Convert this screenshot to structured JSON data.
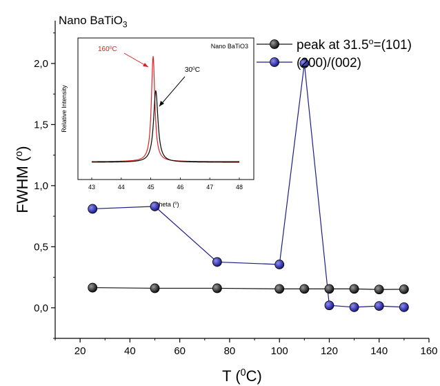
{
  "chart_data": [
    {
      "type": "line",
      "title": "Nano BaTiO3",
      "title_parts": {
        "base": "Nano BaTiO",
        "sub": "3"
      },
      "xlabel": "T (0C)",
      "xlabel_parts": {
        "pre": "T (",
        "sup": "0",
        "post": "C)"
      },
      "ylabel": "FWHM (o)",
      "ylabel_parts": {
        "pre": "FWHM (",
        "sup": "o",
        "post": ")"
      },
      "xlim": [
        10,
        160
      ],
      "ylim": [
        -0.25,
        2.35
      ],
      "x_ticks": [
        "20",
        "40",
        "60",
        "80",
        "100",
        "120",
        "140",
        "160"
      ],
      "x_tick_values": [
        20,
        40,
        60,
        80,
        100,
        120,
        140,
        160
      ],
      "y_ticks": [
        "0,0",
        "0,5",
        "1,0",
        "1,5",
        "2,0"
      ],
      "y_tick_values": [
        0,
        0.5,
        1.0,
        1.5,
        2.0
      ],
      "legend_position": "top-right",
      "series": [
        {
          "name": "peak at 31.5o=(101)",
          "name_parts": {
            "pre": "peak at 31.5",
            "sup": "o",
            "post": "=(101)"
          },
          "color": "#111111",
          "x": [
            25,
            50,
            75,
            100,
            110,
            120,
            130,
            140,
            150
          ],
          "y": [
            0.165,
            0.16,
            0.16,
            0.155,
            0.155,
            0.155,
            0.155,
            0.15,
            0.152
          ]
        },
        {
          "name": "(200)/(002)",
          "color": "#1a1a8c",
          "x": [
            25,
            50,
            75,
            100,
            110,
            120,
            130,
            140,
            150
          ],
          "y": [
            0.81,
            0.83,
            0.375,
            0.355,
            2.0,
            0.02,
            0.005,
            0.015,
            0.005
          ]
        }
      ]
    },
    {
      "type": "line",
      "title": "Nano BaTiO3",
      "xlabel": "2 theta (0)",
      "xlabel_parts": {
        "pre": "2 theta (",
        "sup": "0",
        "post": ")"
      },
      "ylabel": "Relative Intensity",
      "xlim": [
        43,
        48
      ],
      "x_ticks": [
        "43",
        "44",
        "45",
        "46",
        "47",
        "48"
      ],
      "x_tick_values": [
        43,
        44,
        45,
        46,
        47,
        48
      ],
      "series": [
        {
          "label": "1600C",
          "label_parts": {
            "pre": "160",
            "sup": "0",
            "post": "C"
          },
          "color": "#e02020",
          "peak_x": 45.08
        },
        {
          "label": "300C",
          "label_parts": {
            "pre": "30",
            "sup": "0",
            "post": "C"
          },
          "color": "#000000",
          "peak_x": 45.17
        }
      ]
    }
  ]
}
